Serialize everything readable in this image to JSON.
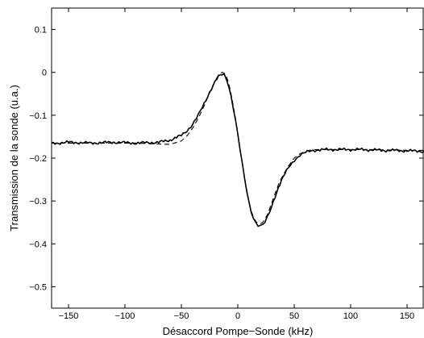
{
  "chart_data": {
    "type": "line",
    "title": "",
    "xlabel": "Désaccord Pompe−Sonde (kHz)",
    "ylabel": "Transmission de la sonde (u.a.)",
    "xlim": [
      -165,
      165
    ],
    "ylim": [
      -0.55,
      0.15
    ],
    "xticks": [
      -150,
      -100,
      -50,
      0,
      50,
      100,
      150
    ],
    "xtick_labels": [
      "−150",
      "−100",
      "−50",
      "0",
      "50",
      "100",
      "150"
    ],
    "yticks": [
      0.1,
      0,
      -0.1,
      -0.2,
      -0.3,
      -0.4,
      -0.5
    ],
    "ytick_labels": [
      "0.1",
      "0",
      "−0.1",
      "−0.2",
      "−0.3",
      "−0.4",
      "−0.5"
    ],
    "grid": false,
    "legend": "none",
    "series": [
      {
        "style": "solid",
        "color": "#000000",
        "x": [
          -165,
          -150,
          -130,
          -110,
          -90,
          -70,
          -60,
          -50,
          -45,
          -40,
          -35,
          -30,
          -25,
          -20,
          -17,
          -14,
          -12,
          -10,
          -8,
          -6,
          -4,
          -2,
          0,
          2,
          4,
          6,
          8,
          10,
          12,
          14,
          16,
          18,
          20,
          22,
          24,
          26,
          28,
          30,
          33,
          36,
          40,
          45,
          50,
          55,
          60,
          65,
          70,
          80,
          90,
          100,
          110,
          120,
          130,
          140,
          150,
          165
        ],
        "y": [
          -0.166,
          -0.163,
          -0.165,
          -0.163,
          -0.165,
          -0.163,
          -0.158,
          -0.147,
          -0.136,
          -0.121,
          -0.1,
          -0.074,
          -0.046,
          -0.021,
          -0.01,
          -0.005,
          -0.006,
          -0.015,
          -0.032,
          -0.055,
          -0.082,
          -0.112,
          -0.145,
          -0.18,
          -0.215,
          -0.248,
          -0.278,
          -0.305,
          -0.325,
          -0.34,
          -0.35,
          -0.356,
          -0.358,
          -0.356,
          -0.35,
          -0.34,
          -0.328,
          -0.313,
          -0.29,
          -0.268,
          -0.245,
          -0.222,
          -0.205,
          -0.193,
          -0.187,
          -0.183,
          -0.181,
          -0.18,
          -0.18,
          -0.18,
          -0.18,
          -0.181,
          -0.182,
          -0.182,
          -0.183,
          -0.184
        ]
      },
      {
        "style": "dashed",
        "color": "#000000",
        "x": [
          -165,
          -150,
          -130,
          -110,
          -90,
          -70,
          -60,
          -50,
          -45,
          -40,
          -35,
          -30,
          -25,
          -20,
          -17,
          -14,
          -12,
          -10,
          -8,
          -6,
          -4,
          -2,
          0,
          2,
          4,
          6,
          8,
          10,
          12,
          14,
          16,
          18,
          20,
          22,
          24,
          26,
          28,
          30,
          33,
          36,
          40,
          45,
          50,
          55,
          60,
          65,
          70,
          80,
          90,
          100,
          110,
          120,
          130,
          140,
          150,
          165
        ],
        "y": [
          -0.165,
          -0.165,
          -0.165,
          -0.165,
          -0.165,
          -0.167,
          -0.168,
          -0.16,
          -0.148,
          -0.13,
          -0.107,
          -0.079,
          -0.048,
          -0.019,
          -0.006,
          0.0,
          -0.002,
          -0.01,
          -0.026,
          -0.05,
          -0.078,
          -0.108,
          -0.142,
          -0.177,
          -0.212,
          -0.245,
          -0.276,
          -0.303,
          -0.324,
          -0.339,
          -0.348,
          -0.352,
          -0.353,
          -0.35,
          -0.343,
          -0.333,
          -0.32,
          -0.305,
          -0.283,
          -0.262,
          -0.24,
          -0.218,
          -0.2,
          -0.19,
          -0.184,
          -0.181,
          -0.18,
          -0.18,
          -0.18,
          -0.18,
          -0.18,
          -0.18,
          -0.181,
          -0.181,
          -0.182,
          -0.182
        ]
      }
    ]
  }
}
